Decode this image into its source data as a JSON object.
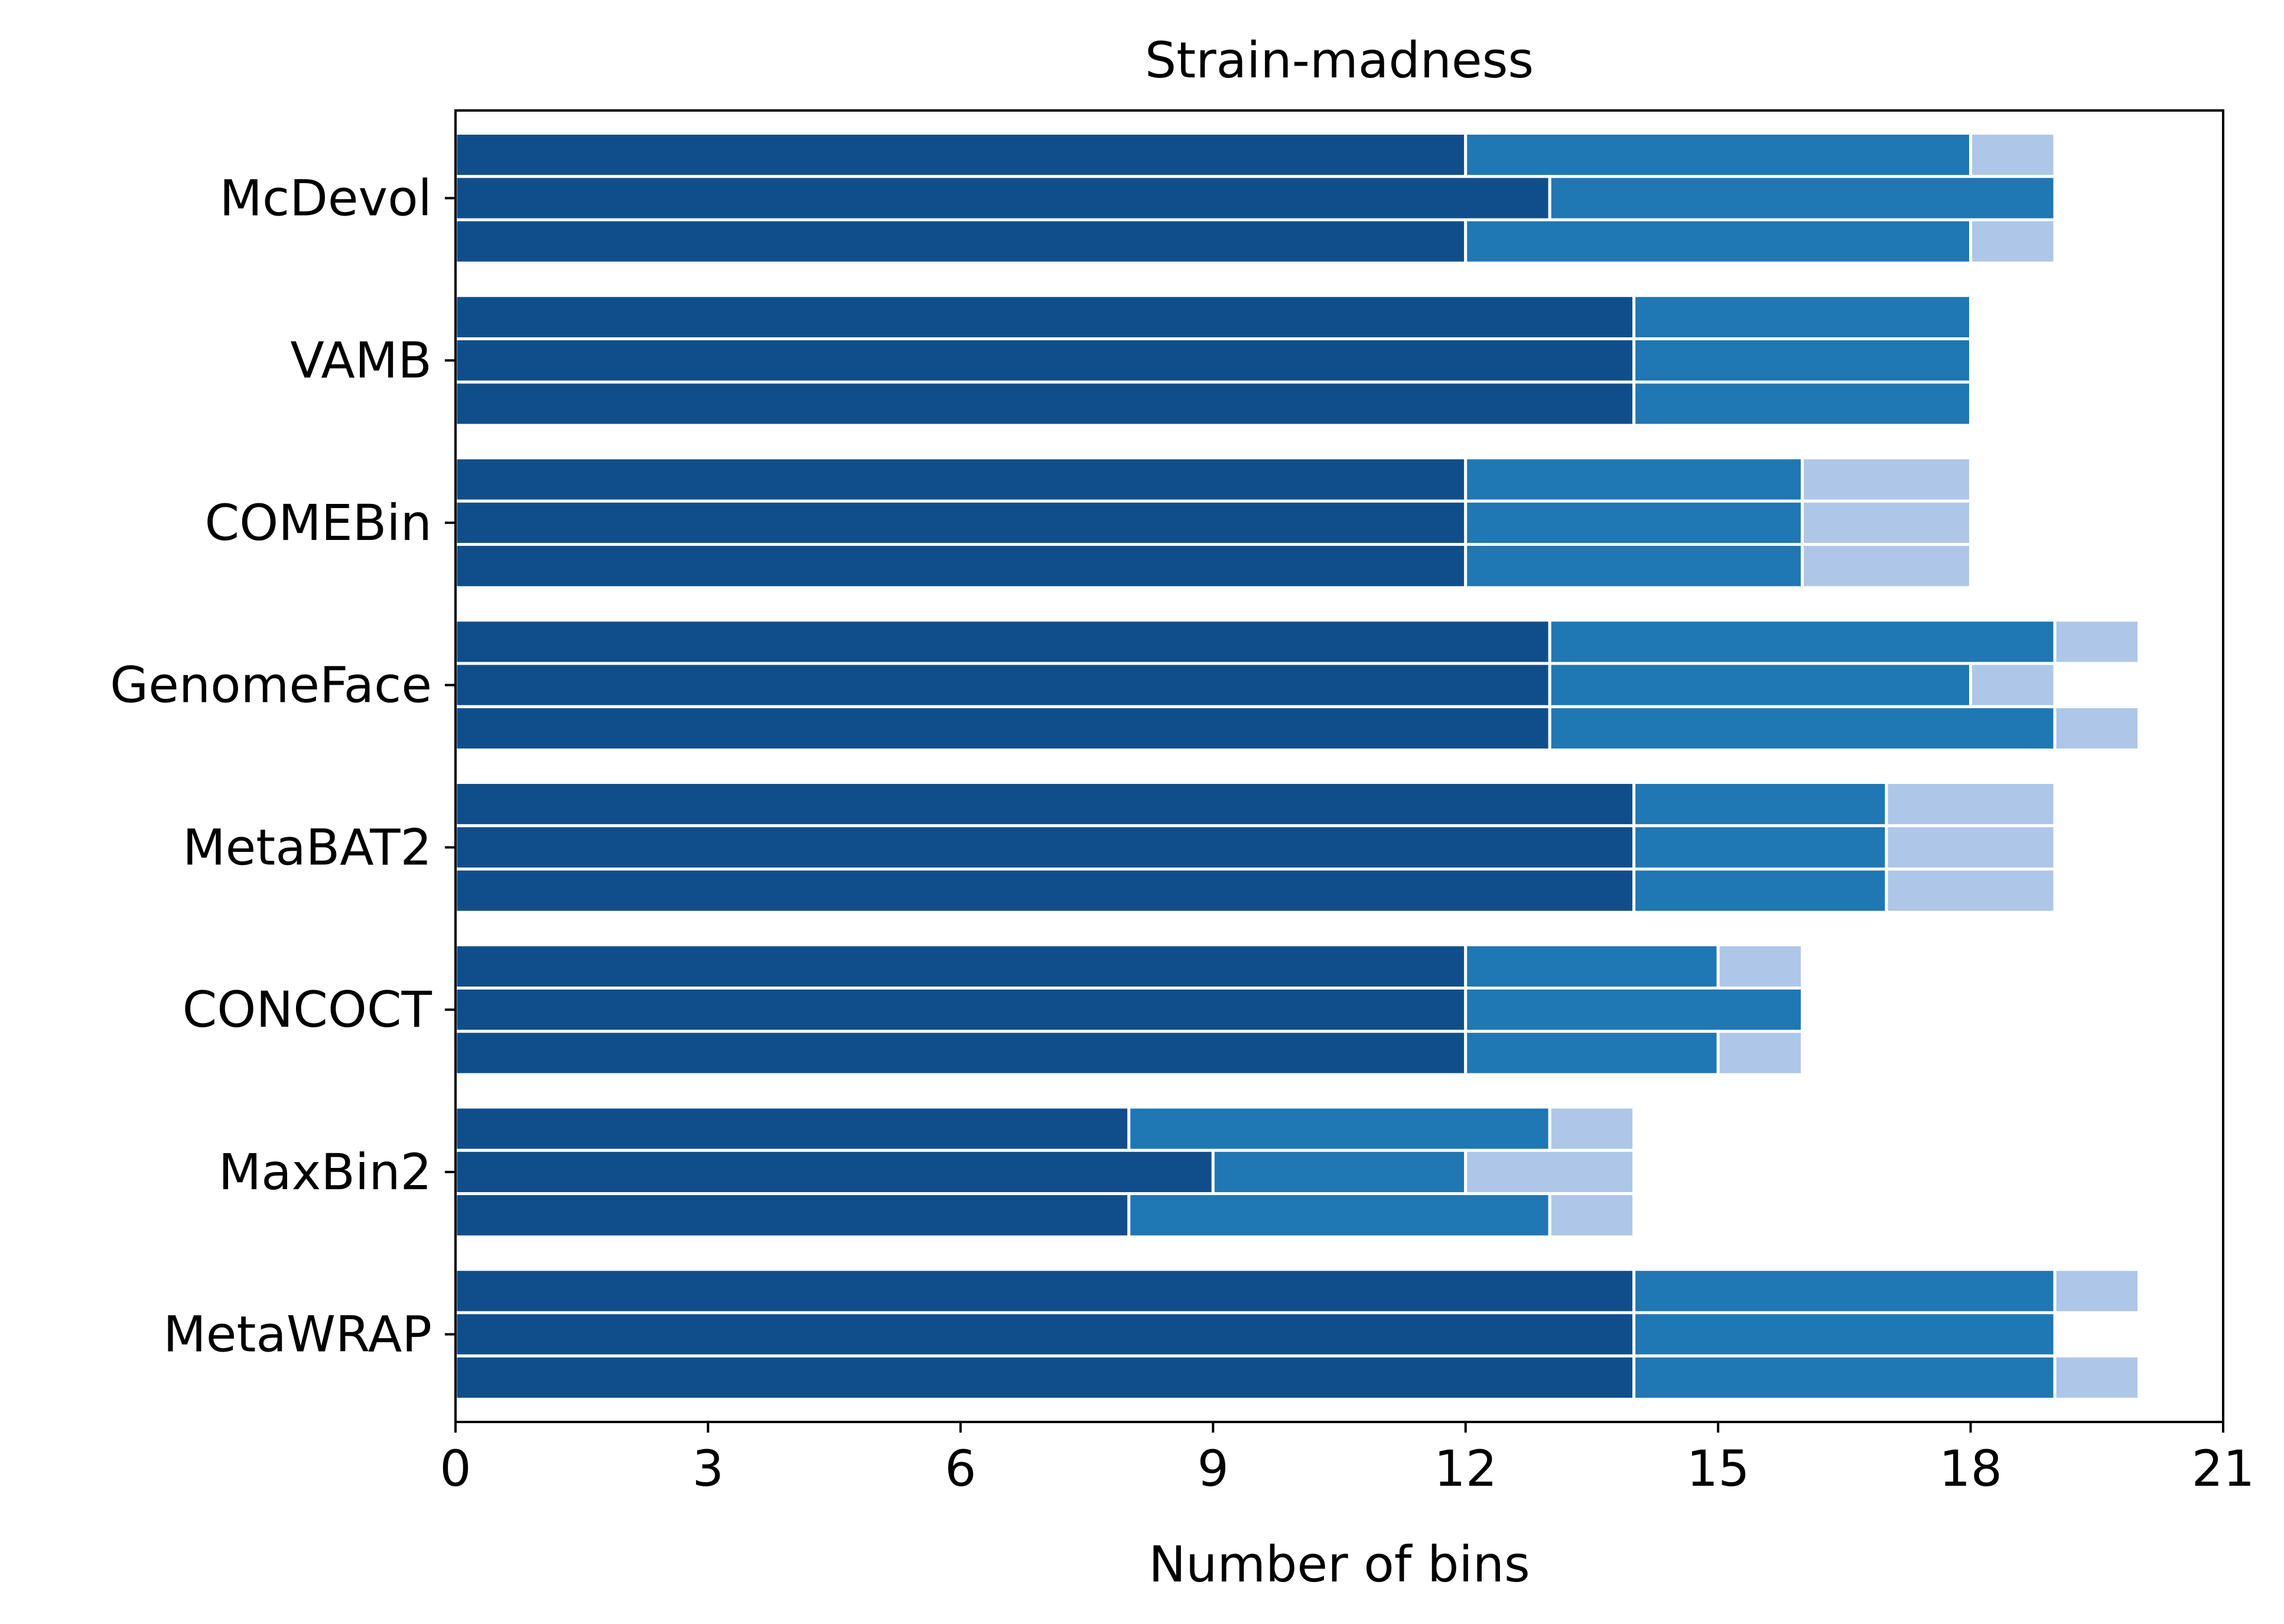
{
  "chart_data": {
    "type": "bar",
    "orientation": "horizontal",
    "stacked": true,
    "title": "Strain-madness",
    "xlabel": "Number of bins",
    "ylabel": "",
    "xlim": [
      0,
      21
    ],
    "xticks": [
      "0",
      "3",
      "6",
      "9",
      "12",
      "15",
      "18",
      "21"
    ],
    "grid": false,
    "legend": "none",
    "colors": [
      "#104e8b",
      "#1f77b4",
      "#aec7e8"
    ],
    "categories": [
      "McDevol",
      "VAMB",
      "COMEBin",
      "GenomeFace",
      "MetaBAT2",
      "CONCOCT",
      "MaxBin2",
      "MetaWRAP"
    ],
    "groups": [
      {
        "category": "McDevol",
        "bars": [
          [
            12,
            6,
            1
          ],
          [
            13,
            6,
            0
          ],
          [
            12,
            6,
            1
          ]
        ]
      },
      {
        "category": "VAMB",
        "bars": [
          [
            14,
            4,
            0
          ],
          [
            14,
            4,
            0
          ],
          [
            14,
            4,
            0
          ]
        ]
      },
      {
        "category": "COMEBin",
        "bars": [
          [
            12,
            4,
            2
          ],
          [
            12,
            4,
            2
          ],
          [
            12,
            4,
            2
          ]
        ]
      },
      {
        "category": "GenomeFace",
        "bars": [
          [
            13,
            6,
            1
          ],
          [
            13,
            5,
            1
          ],
          [
            13,
            6,
            1
          ]
        ]
      },
      {
        "category": "MetaBAT2",
        "bars": [
          [
            14,
            3,
            2
          ],
          [
            14,
            3,
            2
          ],
          [
            14,
            3,
            2
          ]
        ]
      },
      {
        "category": "CONCOCT",
        "bars": [
          [
            12,
            3,
            1
          ],
          [
            12,
            4,
            0
          ],
          [
            12,
            3,
            1
          ]
        ]
      },
      {
        "category": "MaxBin2",
        "bars": [
          [
            8,
            5,
            1
          ],
          [
            9,
            3,
            2
          ],
          [
            8,
            5,
            1
          ]
        ]
      },
      {
        "category": "MetaWRAP",
        "bars": [
          [
            14,
            5,
            1
          ],
          [
            14,
            5,
            0
          ],
          [
            14,
            5,
            1
          ]
        ]
      }
    ]
  }
}
